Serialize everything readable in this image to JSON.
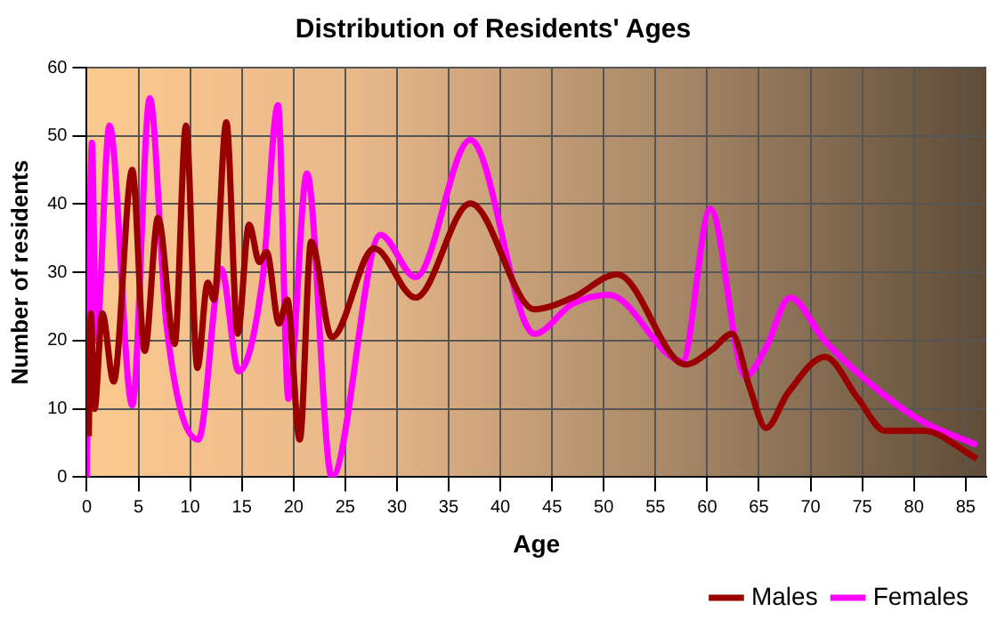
{
  "chart_data": {
    "type": "line",
    "title": "Distribution of Residents' Ages",
    "xlabel": "Age",
    "ylabel": "Number of residents",
    "xlim": [
      0,
      87
    ],
    "xticks": [
      0,
      5,
      10,
      15,
      20,
      25,
      30,
      35,
      40,
      45,
      50,
      55,
      60,
      65,
      70,
      75,
      80,
      85
    ],
    "ylim": [
      0,
      60
    ],
    "yticks": [
      0,
      10,
      20,
      30,
      40,
      50,
      60
    ],
    "grid": true,
    "legend": "bottom right",
    "marker": "none",
    "line_style": "solid",
    "series": [
      {
        "name": "Males",
        "color": "#990000",
        "x": [
          0.2,
          0.4,
          0.75,
          1.5,
          2.6,
          4.4,
          5.6,
          6.9,
          8.5,
          9.6,
          10.7,
          11.7,
          12.3,
          13.5,
          14.6,
          15.7,
          16.7,
          17.4,
          18.6,
          19.4,
          20.6,
          21.7,
          23.7,
          27.8,
          31.8,
          37.1,
          43.3,
          47,
          51.3,
          57.9,
          60.5,
          62.4,
          64.1,
          65.7,
          67.8,
          71.4,
          74.6,
          77.2,
          80.9,
          86.1
        ],
        "values": [
          6,
          24,
          10,
          24,
          14,
          45,
          18.5,
          38,
          19.5,
          51.5,
          16,
          28.5,
          26,
          52,
          21,
          37,
          31.5,
          33,
          22.5,
          26,
          5.5,
          34.5,
          20.5,
          33.5,
          26.3,
          40.1,
          24.6,
          26.3,
          29.7,
          16.5,
          18.7,
          21,
          13.2,
          7.2,
          12.3,
          17.6,
          11.5,
          6.8,
          6.8,
          2.7
        ]
      },
      {
        "name": "Females",
        "color": "#ff00ff",
        "x": [
          0,
          0.5,
          0.9,
          2.2,
          4.4,
          6.1,
          7.7,
          10.8,
          13,
          14.7,
          17,
          18.5,
          19.5,
          21.3,
          23.7,
          28.4,
          31.8,
          37.1,
          43.3,
          47,
          50.5,
          57.6,
          60.3,
          63.7,
          65.7,
          68,
          71.4,
          76.9,
          80.9,
          86.1
        ],
        "values": [
          0,
          49,
          20,
          51.5,
          10.5,
          55.5,
          22.5,
          5.5,
          30.5,
          15.5,
          29,
          54.5,
          11.5,
          44.5,
          0,
          35.5,
          29.3,
          49.4,
          21,
          25.4,
          26.7,
          17,
          39.3,
          14.8,
          19,
          26.3,
          19.9,
          12.3,
          8.1,
          4.7
        ]
      }
    ]
  }
}
